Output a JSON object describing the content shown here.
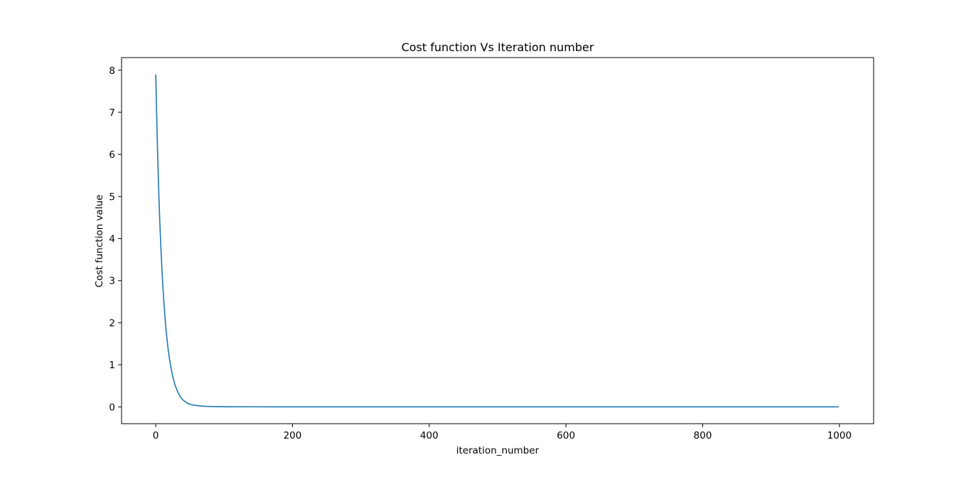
{
  "chart_data": {
    "type": "line",
    "title": "Cost function Vs Iteration number",
    "xlabel": "iteration_number",
    "ylabel": "Cost function value",
    "xlim": [
      -50,
      1050
    ],
    "ylim": [
      -0.4,
      8.3
    ],
    "xticks": [
      0,
      200,
      400,
      600,
      800,
      1000
    ],
    "yticks": [
      0,
      1,
      2,
      3,
      4,
      5,
      6,
      7,
      8
    ],
    "grid": false,
    "series": [
      {
        "color": "#1f77b4",
        "x": [
          0,
          1,
          2,
          3,
          4,
          5,
          6,
          7,
          8,
          9,
          10,
          12,
          14,
          16,
          18,
          20,
          22,
          24,
          26,
          28,
          30,
          33,
          36,
          40,
          45,
          50,
          60,
          70,
          80,
          100,
          150,
          200,
          300,
          400,
          500,
          600,
          700,
          800,
          900,
          999
        ],
        "y": [
          7.9,
          7.18,
          6.5,
          5.88,
          5.32,
          4.82,
          4.38,
          3.98,
          3.62,
          3.28,
          2.98,
          2.47,
          2.03,
          1.68,
          1.39,
          1.15,
          0.95,
          0.79,
          0.65,
          0.53,
          0.44,
          0.33,
          0.24,
          0.16,
          0.1,
          0.06,
          0.03,
          0.015,
          0.008,
          0.003,
          0.001,
          0.0005,
          0.0002,
          0.0001,
          0.0001,
          0.0001,
          0.0001,
          0.0001,
          0.0001,
          0.0001
        ]
      }
    ]
  }
}
